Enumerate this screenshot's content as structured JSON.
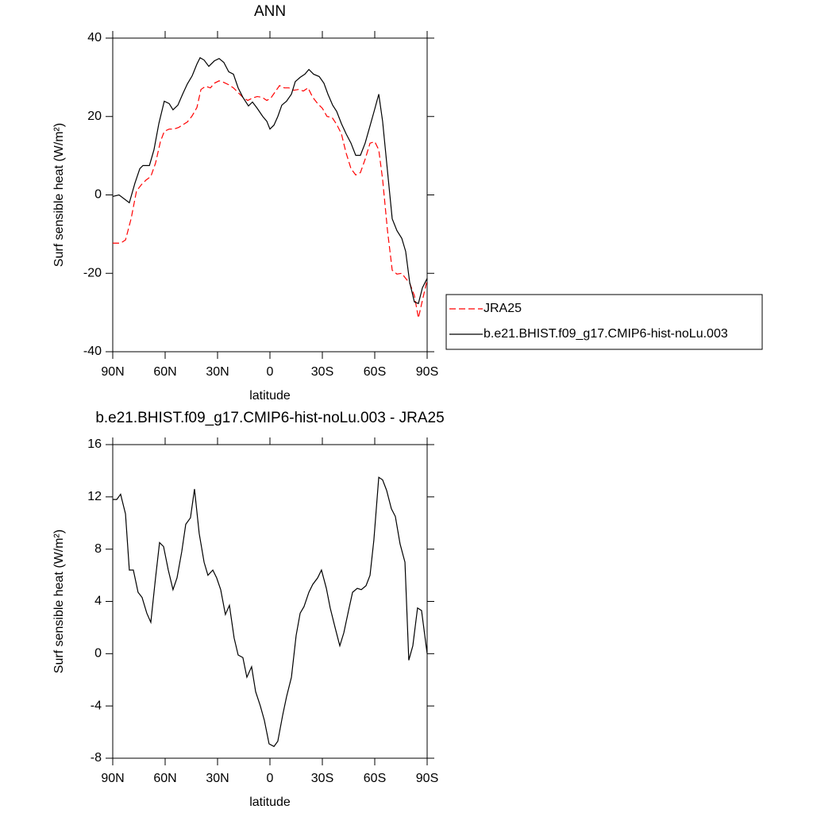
{
  "chart_data": [
    {
      "type": "line",
      "title": "ANN",
      "xlabel": "latitude",
      "ylabel": "Surf sensible heat (W/m²)",
      "xlim": [
        90,
        -90
      ],
      "xticks": [
        {
          "value": 90,
          "label": "90N"
        },
        {
          "value": 60,
          "label": "60N"
        },
        {
          "value": 30,
          "label": "30N"
        },
        0,
        {
          "value": -30,
          "label": "30S"
        },
        {
          "value": -60,
          "label": "60S"
        },
        {
          "value": -90,
          "label": "90S"
        }
      ],
      "ylim": [
        -40,
        40
      ],
      "yticks": [
        -40,
        -20,
        0,
        20,
        40
      ],
      "legend": "right",
      "series": [
        {
          "name": "JRA25",
          "color": "#ff0000",
          "line_style": "dashed",
          "x": [
            90,
            85.5,
            82.7,
            79.5,
            76.4,
            73.6,
            70.9,
            68.2,
            65.5,
            62.7,
            60.5,
            57.7,
            55,
            52.3,
            49.5,
            47.3,
            44.5,
            41.8,
            39.5,
            36.8,
            34.1,
            31.8,
            29.1,
            26.4,
            23.6,
            20.9,
            18.2,
            15.5,
            12.7,
            10,
            7.3,
            4.5,
            1.8,
            -0.5,
            -2.7,
            -5.5,
            -8.2,
            -10.9,
            -13.6,
            -16.4,
            -19.1,
            -21.8,
            -24.5,
            -27.3,
            -30,
            -32.7,
            -35.5,
            -38.2,
            -40.9,
            -43.6,
            -46.4,
            -49.1,
            -51.8,
            -54.5,
            -57.3,
            -60,
            -62.3,
            -64.5,
            -67.3,
            -70,
            -72.7,
            -75.5,
            -77.7,
            -80,
            -82.7,
            -85,
            -87.3,
            -90
          ],
          "values": [
            -12.3,
            -12.3,
            -11.5,
            -6.1,
            1,
            2.6,
            3.8,
            4.7,
            8.1,
            13.6,
            16.2,
            16.8,
            16.8,
            17.2,
            18,
            18.6,
            20.2,
            22.3,
            26.9,
            27.7,
            27.3,
            28.5,
            29.1,
            28.7,
            28.1,
            27.3,
            26.1,
            24.9,
            24.1,
            24.7,
            25.1,
            24.9,
            24.1,
            24.7,
            26.1,
            27.9,
            27.3,
            27.3,
            26.7,
            26.9,
            26.5,
            27.3,
            24.9,
            23.3,
            22.1,
            20,
            19.8,
            18,
            15.6,
            10.7,
            6.7,
            5.1,
            5.7,
            9.1,
            13.2,
            13.6,
            11.5,
            4,
            -9.1,
            -19.2,
            -20.2,
            -20,
            -21.3,
            -22.5,
            -25.7,
            -31.4,
            -26.9,
            -21.7
          ]
        },
        {
          "name": "b.e21.BHIST.f09_g17.CMIP6-hist-noLu.003",
          "color": "#000000",
          "line_style": "solid",
          "x": [
            90,
            86.4,
            80.5,
            77.3,
            74.5,
            72.7,
            69,
            66.4,
            63.6,
            60.5,
            57.7,
            55.5,
            52.7,
            50,
            47.3,
            44.5,
            41.8,
            40,
            37.7,
            35,
            31.8,
            29.1,
            26.4,
            23.6,
            20.9,
            18.2,
            15.5,
            12.3,
            10,
            7.3,
            4.1,
            1.8,
            0,
            -2.3,
            -4.5,
            -6.8,
            -9.5,
            -12.3,
            -14.5,
            -17.3,
            -20,
            -22.3,
            -25,
            -28.2,
            -30.9,
            -33.2,
            -35.9,
            -38.2,
            -40.9,
            -43.6,
            -46.4,
            -49.1,
            -51.8,
            -54.5,
            -57.3,
            -60,
            -62.3,
            -64.5,
            -67.3,
            -70,
            -72.7,
            -75.5,
            -77.7,
            -80,
            -82.7,
            -85,
            -87.3,
            -90
          ],
          "values": [
            -0.4,
            0,
            -2,
            3,
            6.7,
            7.5,
            7.5,
            11.5,
            18.2,
            23.9,
            23.3,
            21.7,
            22.9,
            25.7,
            28.3,
            30.4,
            33.4,
            35,
            34.4,
            32.8,
            34.2,
            34.8,
            33.8,
            31.4,
            30.8,
            27.3,
            24.9,
            22.7,
            23.7,
            22.1,
            20,
            18.8,
            16.8,
            17.8,
            20,
            22.9,
            23.9,
            25.7,
            28.9,
            30,
            30.8,
            32,
            30.8,
            30.2,
            28.5,
            25.7,
            22.9,
            21.3,
            18.2,
            15.6,
            13.2,
            10.1,
            10.1,
            13.2,
            17.6,
            21.9,
            25.7,
            18.8,
            6.1,
            -6.1,
            -9.1,
            -11.1,
            -14.4,
            -22.3,
            -27.3,
            -27.7,
            -23.7,
            -21.3
          ]
        }
      ]
    },
    {
      "type": "line",
      "title": "b.e21.BHIST.f09_g17.CMIP6-hist-noLu.003 - JRA25",
      "xlabel": "latitude",
      "ylabel": "Surf sensible heat (W/m²)",
      "xlim": [
        90,
        -90
      ],
      "xticks": [
        {
          "value": 90,
          "label": "90N"
        },
        {
          "value": 60,
          "label": "60N"
        },
        {
          "value": 30,
          "label": "30N"
        },
        0,
        {
          "value": -30,
          "label": "30S"
        },
        {
          "value": -60,
          "label": "60S"
        },
        {
          "value": -90,
          "label": "90S"
        }
      ],
      "ylim": [
        -8,
        16
      ],
      "yticks": [
        -8,
        -4,
        0,
        4,
        8,
        12,
        16
      ],
      "color": "#000000",
      "x": [
        90,
        87.7,
        85.5,
        82.7,
        80.5,
        78.2,
        75.5,
        73.2,
        70.5,
        68.2,
        65.5,
        63.2,
        60.9,
        58.2,
        55.5,
        53.2,
        50.5,
        48.2,
        45.5,
        43.2,
        40.5,
        37.7,
        35.5,
        32.7,
        30.5,
        28.2,
        25.5,
        23.2,
        20.5,
        18.2,
        15.5,
        13.2,
        10.5,
        8.2,
        5.5,
        3.2,
        0.5,
        -2.3,
        -4.5,
        -7.3,
        -9.5,
        -12.3,
        -15,
        -17.3,
        -19.5,
        -22.3,
        -24.5,
        -27.3,
        -29.5,
        -32.3,
        -34.5,
        -37.3,
        -40,
        -42.3,
        -45,
        -47.3,
        -50,
        -52.3,
        -55,
        -57.3,
        -59.5,
        -62.3,
        -64.5,
        -66.8,
        -69.5,
        -71.8,
        -74.5,
        -77.3,
        -79.5,
        -81.8,
        -84.5,
        -86.8,
        -90
      ],
      "values": [
        11.8,
        11.8,
        12.2,
        10.7,
        6.4,
        6.4,
        4.7,
        4.3,
        3.1,
        2.4,
        5.8,
        8.5,
        8.2,
        6.4,
        4.9,
        5.8,
        7.8,
        9.9,
        10.4,
        12.6,
        9.2,
        7,
        6,
        6.4,
        5.8,
        4.9,
        3,
        3.7,
        1.2,
        -0.1,
        -0.3,
        -1.8,
        -1,
        -2.9,
        -4,
        -5.1,
        -6.9,
        -7.1,
        -6.7,
        -4.7,
        -3.3,
        -1.8,
        1.4,
        3.1,
        3.6,
        4.7,
        5.3,
        5.8,
        6.4,
        5,
        3.5,
        2,
        0.6,
        1.6,
        3.3,
        4.7,
        5,
        4.9,
        5.2,
        6,
        8.7,
        13.5,
        13.3,
        12.5,
        11.1,
        10.5,
        8.4,
        7,
        -0.5,
        0.6,
        3.5,
        3.3,
        0
      ]
    }
  ]
}
